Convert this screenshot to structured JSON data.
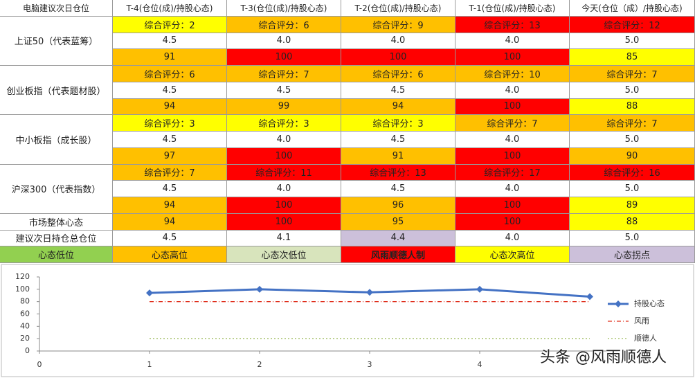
{
  "table": {
    "header": [
      "电脑建议次日仓位",
      "T-4(仓位(成)/持股心态)",
      "T-3(仓位(成)/持股心态)",
      "T-2(仓位(成)/持股心态)",
      "T-1(仓位(成)/持股心态)",
      "今天(仓位（成）/持股心态)"
    ],
    "groups": [
      {
        "label": "上证50（代表蓝筹）",
        "rows": [
          [
            {
              "text": "综合评分：2",
              "color": "#ffff00"
            },
            {
              "text": "综合评分：6",
              "color": "#ffc000"
            },
            {
              "text": "综合评分：9",
              "color": "#ffc000"
            },
            {
              "text": "综合评分：13",
              "color": "#ff0000"
            },
            {
              "text": "综合评分：12",
              "color": "#ff0000"
            }
          ],
          [
            {
              "text": "4.5",
              "color": "#ffffff"
            },
            {
              "text": "4.0",
              "color": "#ffffff"
            },
            {
              "text": "4.0",
              "color": "#ffffff"
            },
            {
              "text": "4.0",
              "color": "#ffffff"
            },
            {
              "text": "5.0",
              "color": "#ffffff"
            }
          ],
          [
            {
              "text": "91",
              "color": "#ffc000"
            },
            {
              "text": "100",
              "color": "#ff0000"
            },
            {
              "text": "100",
              "color": "#ff0000"
            },
            {
              "text": "100",
              "color": "#ff0000"
            },
            {
              "text": "85",
              "color": "#ffff00"
            }
          ]
        ]
      },
      {
        "label": "创业板指（代表题材股）",
        "rows": [
          [
            {
              "text": "综合评分：6",
              "color": "#ffc000"
            },
            {
              "text": "综合评分：7",
              "color": "#ffc000"
            },
            {
              "text": "综合评分：6",
              "color": "#ffc000"
            },
            {
              "text": "综合评分：10",
              "color": "#ffc000"
            },
            {
              "text": "综合评分：7",
              "color": "#ffc000"
            }
          ],
          [
            {
              "text": "4.5",
              "color": "#ffffff"
            },
            {
              "text": "4.5",
              "color": "#ffffff"
            },
            {
              "text": "4.5",
              "color": "#ffffff"
            },
            {
              "text": "4.0",
              "color": "#ffffff"
            },
            {
              "text": "5.0",
              "color": "#ffffff"
            }
          ],
          [
            {
              "text": "94",
              "color": "#ffc000"
            },
            {
              "text": "99",
              "color": "#ffc000"
            },
            {
              "text": "94",
              "color": "#ffc000"
            },
            {
              "text": "100",
              "color": "#ff0000"
            },
            {
              "text": "88",
              "color": "#ffff00"
            }
          ]
        ]
      },
      {
        "label": "中小板指（成长股）",
        "rows": [
          [
            {
              "text": "综合评分：3",
              "color": "#ffff00"
            },
            {
              "text": "综合评分：3",
              "color": "#ffff00"
            },
            {
              "text": "综合评分：3",
              "color": "#ffff00"
            },
            {
              "text": "综合评分：7",
              "color": "#ffc000"
            },
            {
              "text": "综合评分：7",
              "color": "#ffc000"
            }
          ],
          [
            {
              "text": "4.5",
              "color": "#ffffff"
            },
            {
              "text": "4.0",
              "color": "#ffffff"
            },
            {
              "text": "4.5",
              "color": "#ffffff"
            },
            {
              "text": "4.0",
              "color": "#ffffff"
            },
            {
              "text": "5.0",
              "color": "#ffffff"
            }
          ],
          [
            {
              "text": "97",
              "color": "#ffc000"
            },
            {
              "text": "100",
              "color": "#ff0000"
            },
            {
              "text": "91",
              "color": "#ffc000"
            },
            {
              "text": "100",
              "color": "#ff0000"
            },
            {
              "text": "90",
              "color": "#ffc000"
            }
          ]
        ]
      },
      {
        "label": "沪深300（代表指数）",
        "rows": [
          [
            {
              "text": "综合评分：7",
              "color": "#ffc000"
            },
            {
              "text": "综合评分：11",
              "color": "#ff0000"
            },
            {
              "text": "综合评分：13",
              "color": "#ff0000"
            },
            {
              "text": "综合评分：17",
              "color": "#ff0000"
            },
            {
              "text": "综合评分：16",
              "color": "#ff0000"
            }
          ],
          [
            {
              "text": "4.5",
              "color": "#ffffff"
            },
            {
              "text": "4.0",
              "color": "#ffffff"
            },
            {
              "text": "4.5",
              "color": "#ffffff"
            },
            {
              "text": "4.0",
              "color": "#ffffff"
            },
            {
              "text": "5.0",
              "color": "#ffffff"
            }
          ],
          [
            {
              "text": "94",
              "color": "#ffc000"
            },
            {
              "text": "100",
              "color": "#ff0000"
            },
            {
              "text": "96",
              "color": "#ffc000"
            },
            {
              "text": "100",
              "color": "#ff0000"
            },
            {
              "text": "89",
              "color": "#ffff00"
            }
          ]
        ]
      },
      {
        "label": "市场整体心态",
        "rows": [
          [
            {
              "text": "94",
              "color": "#ffc000"
            },
            {
              "text": "100",
              "color": "#ff0000"
            },
            {
              "text": "95",
              "color": "#ffc000"
            },
            {
              "text": "100",
              "color": "#ff0000"
            },
            {
              "text": "88",
              "color": "#ffff00"
            }
          ]
        ]
      },
      {
        "label": "建议次日持仓总仓位",
        "rows": [
          [
            {
              "text": "4.5",
              "color": "#ffffff"
            },
            {
              "text": "4.1",
              "color": "#ffffff"
            },
            {
              "text": "4.4",
              "color": "#ccc0da"
            },
            {
              "text": "4.0",
              "color": "#ffffff"
            },
            {
              "text": "5.0",
              "color": "#ffffff"
            }
          ]
        ]
      }
    ],
    "legend": [
      {
        "text": "心态低位",
        "color": "#92d050"
      },
      {
        "text": "心态高位",
        "color": "#ffc000"
      },
      {
        "text": "心态次低位",
        "color": "#d8e4bc"
      },
      {
        "text": "风雨顺德人制",
        "color": "#ff0000"
      },
      {
        "text": "心态次高位",
        "color": "#ffff00"
      },
      {
        "text": "心态拐点",
        "color": "#ccc0da"
      }
    ]
  },
  "chart_data": {
    "type": "line",
    "x": [
      1,
      2,
      3,
      4,
      5
    ],
    "xlim": [
      0,
      5
    ],
    "xticks": [
      0,
      1,
      2,
      3,
      4
    ],
    "ylim": [
      0,
      120
    ],
    "yticks": [
      0,
      20,
      40,
      60,
      80,
      100,
      120
    ],
    "grid": false,
    "legend": "right",
    "series": [
      {
        "name": "持股心态",
        "color": "#4472c4",
        "style": "solid",
        "marker": "diamond",
        "values": [
          94,
          100,
          95,
          100,
          88
        ]
      },
      {
        "name": "风雨",
        "color": "#e0301e",
        "style": "dashdot",
        "values": [
          80,
          80,
          80,
          80,
          80
        ]
      },
      {
        "name": "顺德人",
        "color": "#9bbb59",
        "style": "dotted",
        "values": [
          20,
          20,
          20,
          20,
          20
        ]
      }
    ]
  },
  "watermark": "头条 @风雨顺德人"
}
